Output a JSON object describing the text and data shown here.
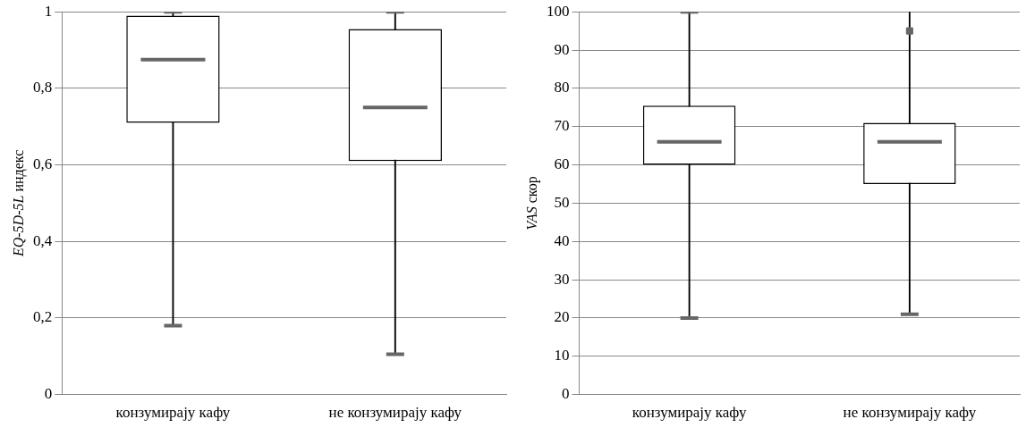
{
  "chart_data": [
    {
      "type": "box",
      "ylabel": "EQ-5D-5L индекс",
      "categories": [
        "конзумирају кафу",
        "не конзумирају кафу"
      ],
      "boxes": [
        {
          "low": 0.18,
          "q1": 0.71,
          "median": 0.875,
          "q3": 0.99,
          "high": 1.0
        },
        {
          "low": 0.105,
          "q1": 0.61,
          "median": 0.75,
          "q3": 0.955,
          "high": 1.0
        }
      ],
      "ylim": [
        0,
        1
      ],
      "yticks": [
        0,
        {
          "value": 0.2,
          "label": "0,2"
        },
        {
          "value": 0.4,
          "label": "0,4"
        },
        {
          "value": 0.6,
          "label": "0,6"
        },
        {
          "value": 0.8,
          "label": "0,8"
        },
        1
      ],
      "grid": "y",
      "legend": false
    },
    {
      "type": "box",
      "ylabel": "VAS скор",
      "categories": [
        "конзумирају кафу",
        "не конзумирају кафу"
      ],
      "boxes": [
        {
          "low": 20,
          "q1": 60,
          "median": 66,
          "q3": 75.5,
          "high": 100
        },
        {
          "low": 21,
          "q1": 55,
          "median": 66,
          "q3": 71,
          "high": 100
        }
      ],
      "series": [
        {
          "type": "scatter",
          "x": [
            "не конзумирају кафу"
          ],
          "values": [
            95
          ],
          "color": "#666666"
        }
      ],
      "ylim": [
        0,
        100
      ],
      "yticks": [
        0,
        10,
        20,
        30,
        40,
        50,
        60,
        70,
        80,
        90,
        100
      ],
      "grid": "y",
      "legend": false
    }
  ]
}
